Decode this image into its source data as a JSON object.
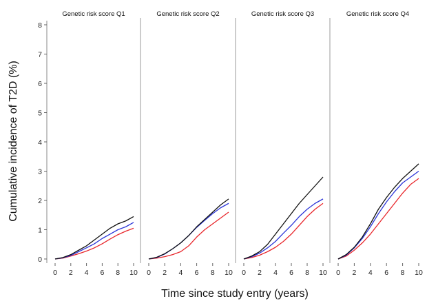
{
  "figure": {
    "ylabel": "Cumulative incidence of T2D (%)",
    "xlabel": "Time since study entry (years)"
  },
  "chart_data": {
    "type": "line",
    "ylabel": "Cumulative incidence of T2D (%)",
    "xlabel": "Time since study entry (years)",
    "ylim": [
      0,
      8
    ],
    "xlim": [
      0,
      10
    ],
    "yticks": [
      "0",
      "1",
      "2",
      "3",
      "4",
      "5",
      "6",
      "7",
      "8"
    ],
    "xticks": [
      "0",
      "2",
      "4",
      "6",
      "8",
      "10"
    ],
    "grid": false,
    "colors": {
      "black": "#111111",
      "blue": "#2b35d8",
      "red": "#e8262b"
    },
    "panels": [
      {
        "title": "Genetic risk score Q1",
        "series": [
          {
            "color": "black",
            "x": [
              0,
              1,
              2,
              3,
              4,
              5,
              6,
              7,
              8,
              9,
              10
            ],
            "y": [
              0,
              0.05,
              0.15,
              0.3,
              0.45,
              0.65,
              0.85,
              1.05,
              1.2,
              1.3,
              1.45
            ]
          },
          {
            "color": "blue",
            "x": [
              0,
              1,
              2,
              3,
              4,
              5,
              6,
              7,
              8,
              9,
              10
            ],
            "y": [
              0,
              0.04,
              0.12,
              0.25,
              0.38,
              0.52,
              0.7,
              0.85,
              1.0,
              1.1,
              1.25
            ]
          },
          {
            "color": "red",
            "x": [
              0,
              1,
              2,
              3,
              4,
              5,
              6,
              7,
              8,
              9,
              10
            ],
            "y": [
              0,
              0.03,
              0.1,
              0.18,
              0.27,
              0.38,
              0.52,
              0.68,
              0.83,
              0.95,
              1.05
            ]
          }
        ]
      },
      {
        "title": "Genetic risk score Q2",
        "series": [
          {
            "color": "black",
            "x": [
              0,
              1,
              2,
              3,
              4,
              5,
              6,
              7,
              8,
              9,
              10
            ],
            "y": [
              0,
              0.06,
              0.18,
              0.35,
              0.55,
              0.8,
              1.1,
              1.35,
              1.6,
              1.85,
              2.05
            ]
          },
          {
            "color": "blue",
            "x": [
              0,
              1,
              2,
              3,
              4,
              5,
              6,
              7,
              8,
              9,
              10
            ],
            "y": [
              0,
              0.05,
              0.17,
              0.35,
              0.55,
              0.8,
              1.08,
              1.32,
              1.55,
              1.75,
              1.9
            ]
          },
          {
            "color": "red",
            "x": [
              0,
              1,
              2,
              3,
              4,
              5,
              6,
              7,
              8,
              9,
              10
            ],
            "y": [
              0,
              0.03,
              0.08,
              0.15,
              0.25,
              0.45,
              0.75,
              1.0,
              1.2,
              1.4,
              1.6
            ]
          }
        ]
      },
      {
        "title": "Genetic risk score Q3",
        "series": [
          {
            "color": "black",
            "x": [
              0,
              1,
              2,
              3,
              4,
              5,
              6,
              7,
              8,
              9,
              10
            ],
            "y": [
              0,
              0.1,
              0.25,
              0.5,
              0.85,
              1.2,
              1.55,
              1.9,
              2.2,
              2.5,
              2.8
            ]
          },
          {
            "color": "blue",
            "x": [
              0,
              1,
              2,
              3,
              4,
              5,
              6,
              7,
              8,
              9,
              10
            ],
            "y": [
              0,
              0.08,
              0.2,
              0.38,
              0.6,
              0.88,
              1.15,
              1.45,
              1.7,
              1.9,
              2.05
            ]
          },
          {
            "color": "red",
            "x": [
              0,
              1,
              2,
              3,
              4,
              5,
              6,
              7,
              8,
              9,
              10
            ],
            "y": [
              0,
              0.05,
              0.13,
              0.25,
              0.4,
              0.6,
              0.85,
              1.15,
              1.45,
              1.7,
              1.9
            ]
          }
        ]
      },
      {
        "title": "Genetic risk score Q4",
        "series": [
          {
            "color": "black",
            "x": [
              0,
              1,
              2,
              3,
              4,
              5,
              6,
              7,
              8,
              9,
              10
            ],
            "y": [
              0,
              0.15,
              0.4,
              0.75,
              1.2,
              1.7,
              2.1,
              2.45,
              2.75,
              3.0,
              3.25
            ]
          },
          {
            "color": "blue",
            "x": [
              0,
              1,
              2,
              3,
              4,
              5,
              6,
              7,
              8,
              9,
              10
            ],
            "y": [
              0,
              0.13,
              0.38,
              0.7,
              1.1,
              1.55,
              1.95,
              2.3,
              2.6,
              2.8,
              3.0
            ]
          },
          {
            "color": "red",
            "x": [
              0,
              1,
              2,
              3,
              4,
              5,
              6,
              7,
              8,
              9,
              10
            ],
            "y": [
              0,
              0.1,
              0.3,
              0.55,
              0.85,
              1.2,
              1.55,
              1.9,
              2.25,
              2.55,
              2.75
            ]
          }
        ]
      }
    ]
  }
}
